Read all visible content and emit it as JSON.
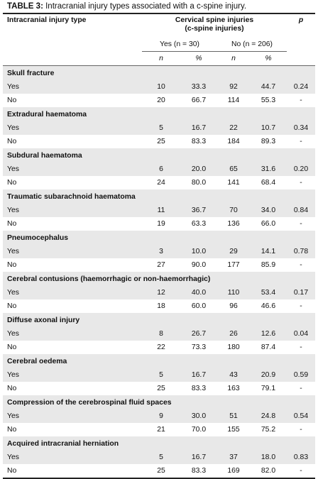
{
  "caption": {
    "label": "TABLE 3:",
    "text": "Intracranial injury types associated with a c-spine injury."
  },
  "header": {
    "col0": "Intracranial injury type",
    "group": "Cervical spine injuries",
    "group_sub": "(c-spine injuries)",
    "p": "p",
    "yes_group": "Yes (n = 30)",
    "no_group": "No (n = 206)",
    "n1": "n",
    "pct1": "%",
    "n2": "n",
    "pct2": "%"
  },
  "categories": [
    {
      "name": "Skull fracture",
      "rows": [
        {
          "label": "Yes",
          "n1": "10",
          "pct1": "33.3",
          "n2": "92",
          "pct2": "44.7",
          "p": "0.24"
        },
        {
          "label": "No",
          "n1": "20",
          "pct1": "66.7",
          "n2": "114",
          "pct2": "55.3",
          "p": "-"
        }
      ]
    },
    {
      "name": "Extradural haematoma",
      "rows": [
        {
          "label": "Yes",
          "n1": "5",
          "pct1": "16.7",
          "n2": "22",
          "pct2": "10.7",
          "p": "0.34"
        },
        {
          "label": "No",
          "n1": "25",
          "pct1": "83.3",
          "n2": "184",
          "pct2": "89.3",
          "p": "-"
        }
      ]
    },
    {
      "name": "Subdural haematoma",
      "rows": [
        {
          "label": "Yes",
          "n1": "6",
          "pct1": "20.0",
          "n2": "65",
          "pct2": "31.6",
          "p": "0.20"
        },
        {
          "label": "No",
          "n1": "24",
          "pct1": "80.0",
          "n2": "141",
          "pct2": "68.4",
          "p": "-"
        }
      ]
    },
    {
      "name": "Traumatic subarachnoid haematoma",
      "rows": [
        {
          "label": "Yes",
          "n1": "11",
          "pct1": "36.7",
          "n2": "70",
          "pct2": "34.0",
          "p": "0.84"
        },
        {
          "label": "No",
          "n1": "19",
          "pct1": "63.3",
          "n2": "136",
          "pct2": "66.0",
          "p": "-"
        }
      ]
    },
    {
      "name": "Pneumocephalus",
      "rows": [
        {
          "label": "Yes",
          "n1": "3",
          "pct1": "10.0",
          "n2": "29",
          "pct2": "14.1",
          "p": "0.78"
        },
        {
          "label": "No",
          "n1": "27",
          "pct1": "90.0",
          "n2": "177",
          "pct2": "85.9",
          "p": "-"
        }
      ]
    },
    {
      "name": "Cerebral contusions (haemorrhagic or non-haemorrhagic)",
      "rows": [
        {
          "label": "Yes",
          "n1": "12",
          "pct1": "40.0",
          "n2": "110",
          "pct2": "53.4",
          "p": "0.17"
        },
        {
          "label": "No",
          "n1": "18",
          "pct1": "60.0",
          "n2": "96",
          "pct2": "46.6",
          "p": "-"
        }
      ]
    },
    {
      "name": "Diffuse axonal injury",
      "rows": [
        {
          "label": "Yes",
          "n1": "8",
          "pct1": "26.7",
          "n2": "26",
          "pct2": "12.6",
          "p": "0.04"
        },
        {
          "label": "No",
          "n1": "22",
          "pct1": "73.3",
          "n2": "180",
          "pct2": "87.4",
          "p": "-"
        }
      ]
    },
    {
      "name": "Cerebral oedema",
      "rows": [
        {
          "label": "Yes",
          "n1": "5",
          "pct1": "16.7",
          "n2": "43",
          "pct2": "20.9",
          "p": "0.59"
        },
        {
          "label": "No",
          "n1": "25",
          "pct1": "83.3",
          "n2": "163",
          "pct2": "79.1",
          "p": "-"
        }
      ]
    },
    {
      "name": "Compression of the cerebrospinal fluid spaces",
      "rows": [
        {
          "label": "Yes",
          "n1": "9",
          "pct1": "30.0",
          "n2": "51",
          "pct2": "24.8",
          "p": "0.54"
        },
        {
          "label": "No",
          "n1": "21",
          "pct1": "70.0",
          "n2": "155",
          "pct2": "75.2",
          "p": "-"
        }
      ]
    },
    {
      "name": "Acquired intracranial herniation",
      "rows": [
        {
          "label": "Yes",
          "n1": "5",
          "pct1": "16.7",
          "n2": "37",
          "pct2": "18.0",
          "p": "0.83"
        },
        {
          "label": "No",
          "n1": "25",
          "pct1": "83.3",
          "n2": "169",
          "pct2": "82.0",
          "p": "-"
        }
      ]
    }
  ],
  "colors": {
    "shade": "#e8e8e8",
    "rule": "#222222"
  }
}
